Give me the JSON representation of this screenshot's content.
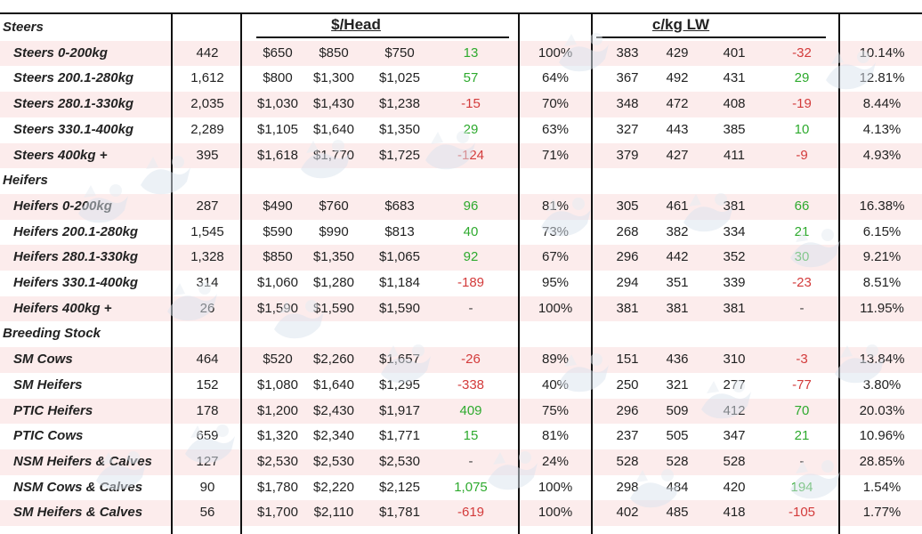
{
  "headers": {
    "dollars_per_head": "$/Head",
    "cents_per_kg": "c/kg LW"
  },
  "colors": {
    "positive": "#2eaa2e",
    "negative": "#d33b3b",
    "stripe": "#fcecec"
  },
  "watermark_icon": "cattle-logo-icon",
  "rows": [
    {
      "type": "category",
      "label": "Steers"
    },
    {
      "type": "item",
      "label": "Steers 0-200kg",
      "head": "442",
      "min": "$650",
      "max": "$850",
      "avg": "$750",
      "chg": "13",
      "dir": "pos",
      "pct": "100%",
      "kmin": "383",
      "kmax": "429",
      "kavg": "401",
      "kchg": "-32",
      "kdir": "neg",
      "last": "10.14%"
    },
    {
      "type": "item",
      "label": "Steers 200.1-280kg",
      "head": "1,612",
      "min": "$800",
      "max": "$1,300",
      "avg": "$1,025",
      "chg": "57",
      "dir": "pos",
      "pct": "64%",
      "kmin": "367",
      "kmax": "492",
      "kavg": "431",
      "kchg": "29",
      "kdir": "pos",
      "last": "12.81%"
    },
    {
      "type": "item",
      "label": "Steers 280.1-330kg",
      "head": "2,035",
      "min": "$1,030",
      "max": "$1,430",
      "avg": "$1,238",
      "chg": "-15",
      "dir": "neg",
      "pct": "70%",
      "kmin": "348",
      "kmax": "472",
      "kavg": "408",
      "kchg": "-19",
      "kdir": "neg",
      "last": "8.44%"
    },
    {
      "type": "item",
      "label": "Steers 330.1-400kg",
      "head": "2,289",
      "min": "$1,105",
      "max": "$1,640",
      "avg": "$1,350",
      "chg": "29",
      "dir": "pos",
      "pct": "63%",
      "kmin": "327",
      "kmax": "443",
      "kavg": "385",
      "kchg": "10",
      "kdir": "pos",
      "last": "4.13%"
    },
    {
      "type": "item",
      "label": "Steers 400kg +",
      "head": "395",
      "min": "$1,618",
      "max": "$1,770",
      "avg": "$1,725",
      "chg": "-124",
      "dir": "neg",
      "pct": "71%",
      "kmin": "379",
      "kmax": "427",
      "kavg": "411",
      "kchg": "-9",
      "kdir": "neg",
      "last": "4.93%"
    },
    {
      "type": "category",
      "label": "Heifers"
    },
    {
      "type": "item",
      "label": "Heifers 0-200kg",
      "head": "287",
      "min": "$490",
      "max": "$760",
      "avg": "$683",
      "chg": "96",
      "dir": "pos",
      "pct": "81%",
      "kmin": "305",
      "kmax": "461",
      "kavg": "381",
      "kchg": "66",
      "kdir": "pos",
      "last": "16.38%"
    },
    {
      "type": "item",
      "label": "Heifers 200.1-280kg",
      "head": "1,545",
      "min": "$590",
      "max": "$990",
      "avg": "$813",
      "chg": "40",
      "dir": "pos",
      "pct": "73%",
      "kmin": "268",
      "kmax": "382",
      "kavg": "334",
      "kchg": "21",
      "kdir": "pos",
      "last": "6.15%"
    },
    {
      "type": "item",
      "label": "Heifers 280.1-330kg",
      "head": "1,328",
      "min": "$850",
      "max": "$1,350",
      "avg": "$1,065",
      "chg": "92",
      "dir": "pos",
      "pct": "67%",
      "kmin": "296",
      "kmax": "442",
      "kavg": "352",
      "kchg": "30",
      "kdir": "pos",
      "last": "9.21%"
    },
    {
      "type": "item",
      "label": "Heifers 330.1-400kg",
      "head": "314",
      "min": "$1,060",
      "max": "$1,280",
      "avg": "$1,184",
      "chg": "-189",
      "dir": "neg",
      "pct": "95%",
      "kmin": "294",
      "kmax": "351",
      "kavg": "339",
      "kchg": "-23",
      "kdir": "neg",
      "last": "8.51%"
    },
    {
      "type": "item",
      "label": "Heifers 400kg +",
      "head": "26",
      "min": "$1,590",
      "max": "$1,590",
      "avg": "$1,590",
      "chg": "-",
      "dir": "dash",
      "pct": "100%",
      "kmin": "381",
      "kmax": "381",
      "kavg": "381",
      "kchg": "-",
      "kdir": "dash",
      "last": "11.95%"
    },
    {
      "type": "category",
      "label": "Breeding Stock"
    },
    {
      "type": "item",
      "label": "SM Cows",
      "head": "464",
      "min": "$520",
      "max": "$2,260",
      "avg": "$1,657",
      "chg": "-26",
      "dir": "neg",
      "pct": "89%",
      "kmin": "151",
      "kmax": "436",
      "kavg": "310",
      "kchg": "-3",
      "kdir": "neg",
      "last": "13.84%"
    },
    {
      "type": "item",
      "label": "SM Heifers",
      "head": "152",
      "min": "$1,080",
      "max": "$1,640",
      "avg": "$1,295",
      "chg": "-338",
      "dir": "neg",
      "pct": "40%",
      "kmin": "250",
      "kmax": "321",
      "kavg": "277",
      "kchg": "-77",
      "kdir": "neg",
      "last": "3.80%"
    },
    {
      "type": "item",
      "label": "PTIC Heifers",
      "head": "178",
      "min": "$1,200",
      "max": "$2,430",
      "avg": "$1,917",
      "chg": "409",
      "dir": "pos",
      "pct": "75%",
      "kmin": "296",
      "kmax": "509",
      "kavg": "412",
      "kchg": "70",
      "kdir": "pos",
      "last": "20.03%"
    },
    {
      "type": "item",
      "label": "PTIC Cows",
      "head": "659",
      "min": "$1,320",
      "max": "$2,340",
      "avg": "$1,771",
      "chg": "15",
      "dir": "pos",
      "pct": "81%",
      "kmin": "237",
      "kmax": "505",
      "kavg": "347",
      "kchg": "21",
      "kdir": "pos",
      "last": "10.96%"
    },
    {
      "type": "item",
      "label": "NSM Heifers & Calves",
      "head": "127",
      "min": "$2,530",
      "max": "$2,530",
      "avg": "$2,530",
      "chg": "-",
      "dir": "dash",
      "pct": "24%",
      "kmin": "528",
      "kmax": "528",
      "kavg": "528",
      "kchg": "-",
      "kdir": "dash",
      "last": "28.85%"
    },
    {
      "type": "item",
      "label": "NSM Cows & Calves",
      "head": "90",
      "min": "$1,780",
      "max": "$2,220",
      "avg": "$2,125",
      "chg": "1,075",
      "dir": "pos",
      "pct": "100%",
      "kmin": "298",
      "kmax": "484",
      "kavg": "420",
      "kchg": "194",
      "kdir": "pos",
      "last": "1.54%"
    },
    {
      "type": "item",
      "label": "SM Heifers & Calves",
      "head": "56",
      "min": "$1,700",
      "max": "$2,110",
      "avg": "$1,781",
      "chg": "-619",
      "dir": "neg",
      "pct": "100%",
      "kmin": "402",
      "kmax": "485",
      "kavg": "418",
      "kchg": "-105",
      "kdir": "neg",
      "last": "1.77%"
    }
  ]
}
